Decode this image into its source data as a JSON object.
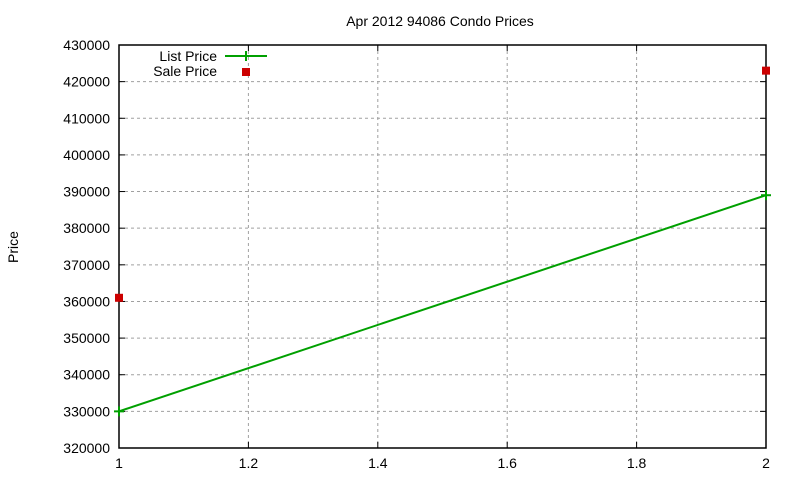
{
  "chart_data": {
    "type": "line",
    "title": "Apr 2012 94086 Condo Prices",
    "xlabel": "",
    "ylabel": "Price",
    "xlim": [
      1,
      2
    ],
    "ylim": [
      320000,
      430000
    ],
    "xticks": [
      "1",
      "1.2",
      "1.4",
      "1.6",
      "1.8",
      "2"
    ],
    "xtick_values": [
      1,
      1.2,
      1.4,
      1.6,
      1.8,
      2
    ],
    "yticks": [
      "320000",
      "330000",
      "340000",
      "350000",
      "360000",
      "370000",
      "380000",
      "390000",
      "400000",
      "410000",
      "420000",
      "430000"
    ],
    "ytick_values": [
      320000,
      330000,
      340000,
      350000,
      360000,
      370000,
      380000,
      390000,
      400000,
      410000,
      420000,
      430000
    ],
    "grid": true,
    "legend_position": "top-left",
    "series": [
      {
        "name": "List Price",
        "style": "linespoints",
        "color": "#00a000",
        "x": [
          1,
          2
        ],
        "y": [
          330000,
          389000
        ]
      },
      {
        "name": "Sale Price",
        "style": "points",
        "color": "#cc0000",
        "x": [
          1,
          2
        ],
        "y": [
          361000,
          423000
        ]
      }
    ]
  }
}
